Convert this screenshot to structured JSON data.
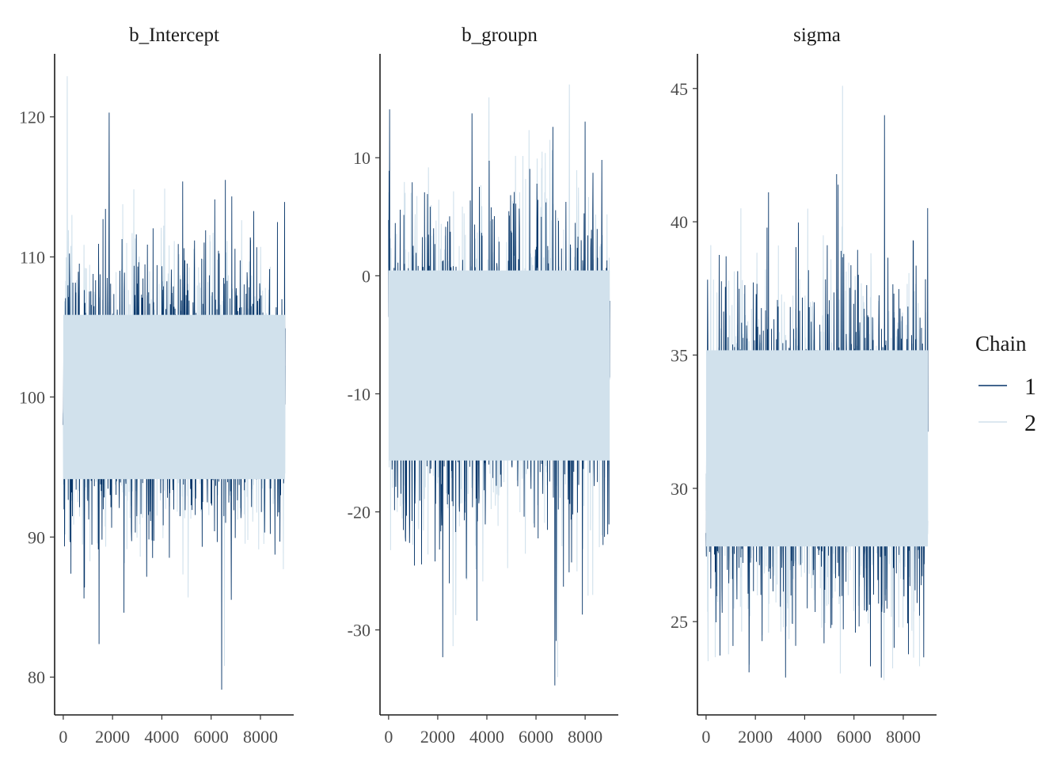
{
  "legend": {
    "title": "Chain",
    "entries": [
      {
        "label": "1",
        "color": "#053468"
      },
      {
        "label": "2",
        "color": "#d1e1ec"
      }
    ]
  },
  "chart_data": [
    {
      "type": "line",
      "title": "b_Intercept",
      "xlabel": "",
      "ylabel": "",
      "x_range": [
        1,
        9000
      ],
      "xlim": [
        -350,
        9350
      ],
      "ylim": [
        77.3,
        124.5
      ],
      "x_ticks": [
        0,
        2000,
        4000,
        6000,
        8000
      ],
      "x_tick_labels": [
        "0",
        "2000",
        "4000",
        "6000",
        "8000"
      ],
      "y_ticks": [
        80,
        90,
        100,
        110,
        120
      ],
      "y_tick_labels": [
        "80",
        "90",
        "100",
        "110",
        "120"
      ],
      "series": [
        {
          "name": "1",
          "mean": 100.2,
          "sd": 5.1,
          "min": 79.1,
          "max": 120.3
        },
        {
          "name": "2",
          "mean": 100.0,
          "sd": 5.1,
          "min": 80.8,
          "max": 122.9
        }
      ],
      "grid": false,
      "legend_position": "right"
    },
    {
      "type": "line",
      "title": "b_groupn",
      "xlabel": "",
      "ylabel": "",
      "x_range": [
        1,
        9000
      ],
      "xlim": [
        -350,
        9350
      ],
      "ylim": [
        -37.2,
        18.8
      ],
      "x_ticks": [
        0,
        2000,
        4000,
        6000,
        8000
      ],
      "x_tick_labels": [
        "0",
        "2000",
        "4000",
        "6000",
        "8000"
      ],
      "y_ticks": [
        -30,
        -20,
        -10,
        0,
        10
      ],
      "y_tick_labels": [
        "-30",
        "-20",
        "-10",
        "0",
        "10"
      ],
      "series": [
        {
          "name": "1",
          "mean": -7.5,
          "sd": 7.0,
          "min": -34.7,
          "max": 14.1
        },
        {
          "name": "2",
          "mean": -7.6,
          "sd": 7.0,
          "min": -34.0,
          "max": 16.2
        }
      ],
      "grid": false,
      "legend_position": "right"
    },
    {
      "type": "line",
      "title": "sigma",
      "xlabel": "",
      "ylabel": "",
      "x_range": [
        1,
        9000
      ],
      "xlim": [
        -350,
        9350
      ],
      "ylim": [
        21.5,
        46.3
      ],
      "x_ticks": [
        0,
        2000,
        4000,
        6000,
        8000
      ],
      "x_tick_labels": [
        "0",
        "2000",
        "4000",
        "6000",
        "8000"
      ],
      "y_ticks": [
        25,
        30,
        35,
        40,
        45
      ],
      "y_tick_labels": [
        "25",
        "30",
        "35",
        "40",
        "45"
      ],
      "series": [
        {
          "name": "1",
          "mean": 31.6,
          "sd": 3.2,
          "min": 22.9,
          "max": 44.0
        },
        {
          "name": "2",
          "mean": 31.5,
          "sd": 3.2,
          "min": 22.8,
          "max": 45.1
        }
      ],
      "grid": false,
      "legend_position": "right"
    }
  ]
}
